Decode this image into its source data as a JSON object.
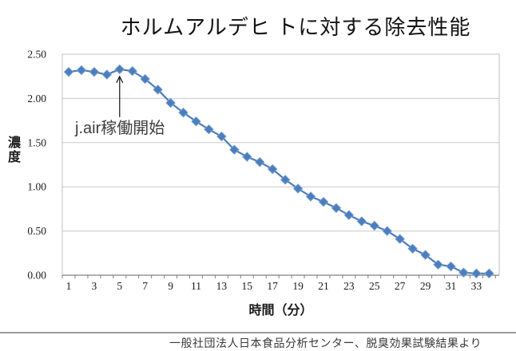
{
  "title": "ホルムアルデヒ トに対する除去性能",
  "footer": {
    "source": "一般社団法人日本食品分析センター、脱臭効果試験結果より"
  },
  "colors": {
    "series": "#4C7DBC",
    "series_edge": "#6E9BD1",
    "grid": "#C9C9C9",
    "plot_border": "#BFBFBF",
    "axis": "#808080",
    "text": "#1A1A1A",
    "annotation_arrow": "#222222"
  },
  "chart_data": {
    "type": "line",
    "title": "ホルムアルデヒ トに対する除去性能",
    "xlabel": "時間（分）",
    "ylabel": "濃度",
    "marker": "diamond",
    "grid": "horizontal",
    "legend": "none",
    "ylim": [
      0,
      2.5
    ],
    "y_ticks": [
      0.0,
      0.5,
      1.0,
      1.5,
      2.0,
      2.5
    ],
    "y_tick_labels": [
      "0.00",
      "0.50",
      "1.00",
      "1.50",
      "2.00",
      "2.50"
    ],
    "x_tick_labels": [
      "1",
      "3",
      "5",
      "7",
      "9",
      "11",
      "13",
      "15",
      "17",
      "19",
      "21",
      "23",
      "25",
      "27",
      "29",
      "31",
      "33"
    ],
    "x": [
      1,
      2,
      3,
      4,
      5,
      6,
      7,
      8,
      9,
      10,
      11,
      12,
      13,
      14,
      15,
      16,
      17,
      18,
      19,
      20,
      21,
      22,
      23,
      24,
      25,
      26,
      27,
      28,
      29,
      30,
      31,
      32,
      33,
      34
    ],
    "values": [
      2.3,
      2.32,
      2.3,
      2.27,
      2.33,
      2.31,
      2.22,
      2.1,
      1.95,
      1.84,
      1.74,
      1.65,
      1.57,
      1.42,
      1.34,
      1.28,
      1.2,
      1.08,
      0.98,
      0.89,
      0.83,
      0.76,
      0.68,
      0.61,
      0.56,
      0.5,
      0.41,
      0.3,
      0.23,
      0.12,
      0.1,
      0.03,
      0.02,
      0.02
    ],
    "annotation": {
      "text": "j.air稼働開始",
      "points_to_x": 5
    }
  }
}
